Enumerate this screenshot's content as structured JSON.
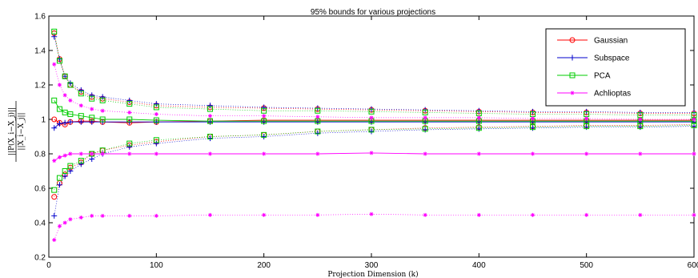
{
  "chart_data": {
    "type": "scatter",
    "title": "95% bounds for various projections",
    "xlabel": "Projection Dimension (k)",
    "ylabel": "||P(X_i − X_j)|| / ||X_i − X_j||",
    "ylabel_numerator": "||P(X_i−X_j)||",
    "ylabel_denominator": "||X_i−X_j||",
    "xlim": [
      0,
      600
    ],
    "ylim": [
      0.2,
      1.6
    ],
    "xticks": [
      "0",
      "100",
      "200",
      "300",
      "400",
      "500",
      "600"
    ],
    "yticks": [
      "0.2",
      "0.4",
      "0.6",
      "0.8",
      "1",
      "1.2",
      "1.4",
      "1.6"
    ],
    "grid": false,
    "legend_position": "top-right",
    "x": [
      5,
      10,
      15,
      20,
      30,
      40,
      50,
      75,
      100,
      150,
      200,
      250,
      300,
      350,
      400,
      450,
      500,
      550,
      600
    ],
    "series": [
      {
        "name": "Gaussian",
        "color": "#ff0000",
        "marker": "circle",
        "center": [
          1.0,
          0.98,
          0.97,
          0.985,
          0.99,
          0.99,
          0.985,
          0.98,
          0.985,
          0.99,
          0.995,
          0.995,
          0.995,
          0.995,
          0.995,
          0.995,
          0.995,
          0.995,
          0.995
        ],
        "upper": [
          1.5,
          1.35,
          1.25,
          1.2,
          1.16,
          1.13,
          1.12,
          1.1,
          1.08,
          1.07,
          1.065,
          1.06,
          1.055,
          1.05,
          1.045,
          1.04,
          1.04,
          1.035,
          1.035
        ],
        "lower": [
          0.55,
          0.63,
          0.68,
          0.72,
          0.75,
          0.8,
          0.82,
          0.85,
          0.87,
          0.9,
          0.91,
          0.93,
          0.94,
          0.95,
          0.955,
          0.96,
          0.965,
          0.965,
          0.97
        ]
      },
      {
        "name": "Subspace",
        "color": "#0000cc",
        "marker": "plus",
        "center": [
          0.95,
          0.975,
          0.98,
          0.985,
          0.985,
          0.985,
          0.985,
          0.985,
          0.985,
          0.985,
          0.985,
          0.985,
          0.985,
          0.985,
          0.985,
          0.985,
          0.985,
          0.985,
          0.985
        ],
        "upper": [
          1.48,
          1.35,
          1.25,
          1.21,
          1.17,
          1.14,
          1.13,
          1.11,
          1.09,
          1.08,
          1.07,
          1.065,
          1.06,
          1.055,
          1.05,
          1.045,
          1.045,
          1.04,
          1.04
        ],
        "lower": [
          0.44,
          0.62,
          0.67,
          0.7,
          0.74,
          0.77,
          0.8,
          0.84,
          0.86,
          0.89,
          0.9,
          0.92,
          0.93,
          0.94,
          0.945,
          0.95,
          0.955,
          0.955,
          0.96
        ]
      },
      {
        "name": "PCA",
        "color": "#00cc00",
        "marker": "square",
        "center": [
          1.11,
          1.06,
          1.04,
          1.03,
          1.02,
          1.01,
          1.0,
          1.0,
          0.995,
          0.99,
          0.99,
          0.99,
          0.99,
          0.99,
          0.99,
          0.99,
          0.99,
          0.99,
          0.99
        ],
        "upper": [
          1.51,
          1.34,
          1.25,
          1.2,
          1.15,
          1.12,
          1.11,
          1.09,
          1.07,
          1.06,
          1.05,
          1.05,
          1.045,
          1.04,
          1.035,
          1.03,
          1.03,
          1.025,
          1.025
        ],
        "lower": [
          0.59,
          0.66,
          0.7,
          0.73,
          0.76,
          0.8,
          0.82,
          0.86,
          0.88,
          0.9,
          0.91,
          0.93,
          0.94,
          0.945,
          0.95,
          0.955,
          0.96,
          0.96,
          0.965
        ]
      },
      {
        "name": "Achlioptas",
        "color": "#ff00ff",
        "marker": "asterisk",
        "center": [
          0.76,
          0.78,
          0.79,
          0.8,
          0.8,
          0.8,
          0.8,
          0.8,
          0.8,
          0.8,
          0.8,
          0.8,
          0.805,
          0.8,
          0.8,
          0.8,
          0.8,
          0.8,
          0.8
        ],
        "upper": [
          1.32,
          1.2,
          1.14,
          1.11,
          1.08,
          1.06,
          1.05,
          1.04,
          1.03,
          1.02,
          1.02,
          1.015,
          1.01,
          1.01,
          1.01,
          1.005,
          1.005,
          1.0,
          1.0
        ],
        "lower": [
          0.3,
          0.38,
          0.4,
          0.42,
          0.43,
          0.44,
          0.44,
          0.44,
          0.44,
          0.445,
          0.445,
          0.445,
          0.45,
          0.445,
          0.445,
          0.445,
          0.445,
          0.445,
          0.445
        ]
      }
    ]
  }
}
